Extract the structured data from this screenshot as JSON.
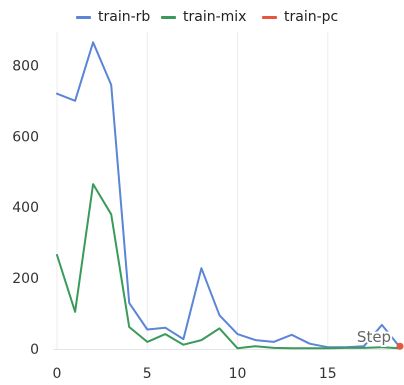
{
  "chart_data": {
    "type": "line",
    "title": "",
    "xlabel": "Step",
    "ylabel": "",
    "x_ticks": [
      0,
      5,
      10,
      15
    ],
    "y_ticks": [
      0,
      200,
      400,
      600,
      800
    ],
    "xlim": [
      0,
      19
    ],
    "ylim": [
      0,
      880
    ],
    "grid": "vertical-major",
    "legend_position": "top",
    "series": [
      {
        "name": "train-rb",
        "color": "#5b85d6",
        "x": [
          0,
          1,
          2,
          3,
          4,
          5,
          6,
          7,
          8,
          9,
          10,
          11,
          12,
          13,
          14,
          15,
          16,
          17,
          18,
          19
        ],
        "y": [
          720,
          700,
          865,
          745,
          130,
          55,
          60,
          28,
          228,
          95,
          42,
          25,
          20,
          40,
          15,
          5,
          5,
          8,
          68,
          5
        ]
      },
      {
        "name": "train-mix",
        "color": "#3a9a5a",
        "x": [
          0,
          1,
          2,
          3,
          4,
          5,
          6,
          7,
          8,
          9,
          10,
          11,
          12,
          13,
          14,
          15,
          16,
          17,
          18,
          19
        ],
        "y": [
          265,
          105,
          465,
          380,
          62,
          20,
          42,
          12,
          25,
          58,
          2,
          8,
          3,
          2,
          2,
          2,
          3,
          3,
          5,
          2
        ]
      },
      {
        "name": "train-pc",
        "color": "#e8553f",
        "x": [
          19
        ],
        "y": [
          5
        ]
      }
    ]
  }
}
